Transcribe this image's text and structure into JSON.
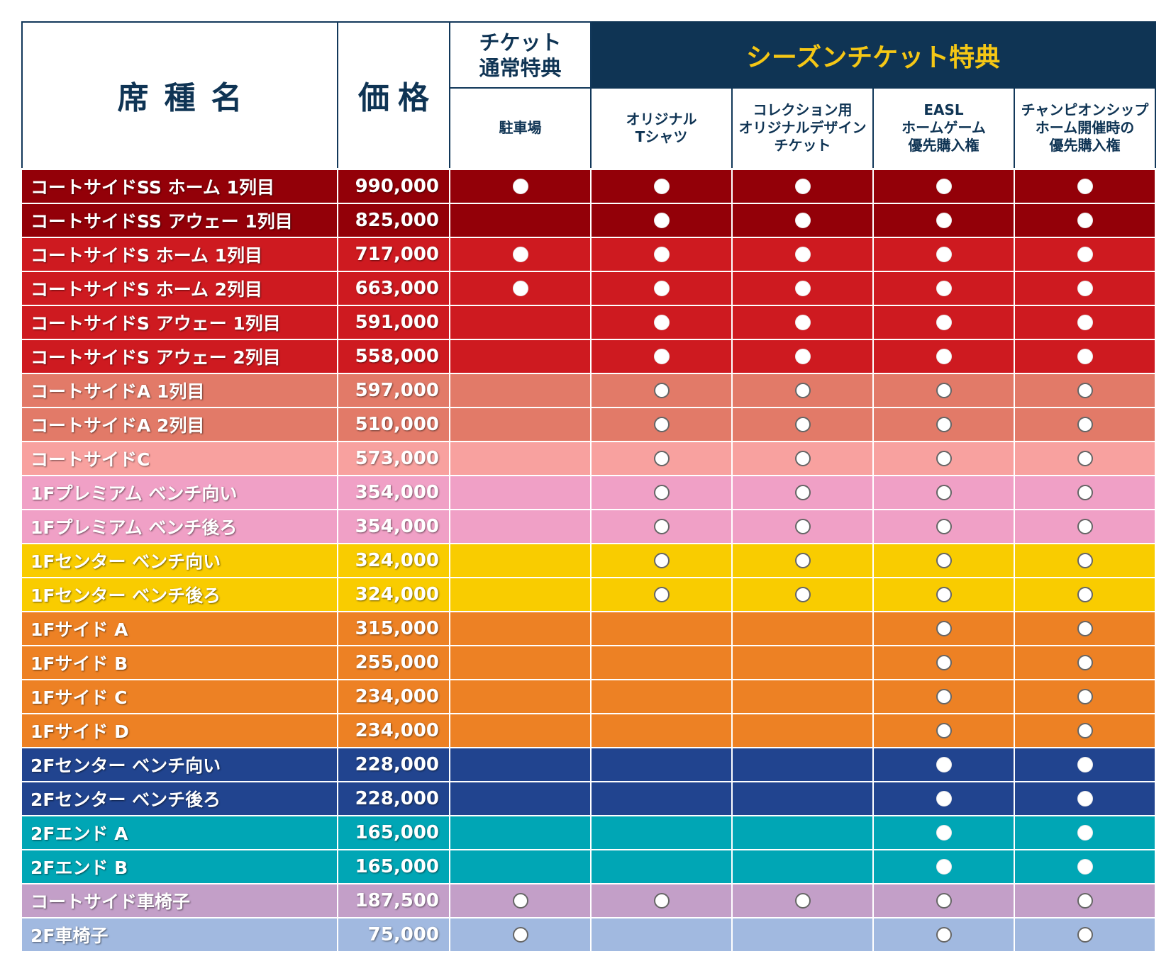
{
  "header": {
    "name": "席種名",
    "price": "価格",
    "normal_benefit": [
      "チケット",
      "通常特典"
    ],
    "season_benefit": "シーズンチケット特典",
    "columns": [
      [
        "駐車場"
      ],
      [
        "オリジナル",
        "Tシャツ"
      ],
      [
        "コレクション用",
        "オリジナルデザイン",
        "チケット"
      ],
      [
        "EASL",
        "ホームゲーム",
        "優先購入権"
      ],
      [
        "チャンピオンシップ",
        "ホーム開催時の",
        "優先購入権"
      ]
    ]
  },
  "colors": {
    "navy": "#0f3454",
    "gold": "#f5c715"
  },
  "rows": [
    {
      "name": "コートサイドSS ホーム 1列目",
      "price": "990,000",
      "bg": "#930008",
      "mark": "filled",
      "marks": [
        1,
        1,
        1,
        1,
        1
      ]
    },
    {
      "name": "コートサイドSS アウェー 1列目",
      "price": "825,000",
      "bg": "#930008",
      "mark": "filled",
      "marks": [
        0,
        1,
        1,
        1,
        1
      ]
    },
    {
      "name": "コートサイドS ホーム 1列目",
      "price": "717,000",
      "bg": "#ce1a20",
      "mark": "filled",
      "marks": [
        1,
        1,
        1,
        1,
        1
      ]
    },
    {
      "name": "コートサイドS ホーム 2列目",
      "price": "663,000",
      "bg": "#ce1a20",
      "mark": "filled",
      "marks": [
        1,
        1,
        1,
        1,
        1
      ]
    },
    {
      "name": "コートサイドS アウェー 1列目",
      "price": "591,000",
      "bg": "#ce1a20",
      "mark": "filled",
      "marks": [
        0,
        1,
        1,
        1,
        1
      ]
    },
    {
      "name": "コートサイドS アウェー 2列目",
      "price": "558,000",
      "bg": "#ce1a20",
      "mark": "filled",
      "marks": [
        0,
        1,
        1,
        1,
        1
      ]
    },
    {
      "name": "コートサイドA 1列目",
      "price": "597,000",
      "bg": "#e27a68",
      "mark": "outline",
      "marks": [
        0,
        1,
        1,
        1,
        1
      ]
    },
    {
      "name": "コートサイドA 2列目",
      "price": "510,000",
      "bg": "#e27a68",
      "mark": "outline",
      "marks": [
        0,
        1,
        1,
        1,
        1
      ]
    },
    {
      "name": "コートサイドC",
      "price": "573,000",
      "bg": "#f8a19f",
      "mark": "outline",
      "marks": [
        0,
        1,
        1,
        1,
        1
      ]
    },
    {
      "name": "1Fプレミアム ベンチ向い",
      "price": "354,000",
      "bg": "#f0a0c6",
      "mark": "outline",
      "marks": [
        0,
        1,
        1,
        1,
        1
      ]
    },
    {
      "name": "1Fプレミアム ベンチ後ろ",
      "price": "354,000",
      "bg": "#f0a0c6",
      "mark": "outline",
      "marks": [
        0,
        1,
        1,
        1,
        1
      ]
    },
    {
      "name": "1Fセンター ベンチ向い",
      "price": "324,000",
      "bg": "#f9cc00",
      "mark": "outline",
      "marks": [
        0,
        1,
        1,
        1,
        1
      ]
    },
    {
      "name": "1Fセンター ベンチ後ろ",
      "price": "324,000",
      "bg": "#f9cc00",
      "mark": "outline",
      "marks": [
        0,
        1,
        1,
        1,
        1
      ]
    },
    {
      "name": "1Fサイド A",
      "price": "315,000",
      "bg": "#ed8124",
      "mark": "outline",
      "marks": [
        0,
        0,
        0,
        1,
        1
      ]
    },
    {
      "name": "1Fサイド B",
      "price": "255,000",
      "bg": "#ed8124",
      "mark": "outline",
      "marks": [
        0,
        0,
        0,
        1,
        1
      ]
    },
    {
      "name": "1Fサイド C",
      "price": "234,000",
      "bg": "#ed8124",
      "mark": "outline",
      "marks": [
        0,
        0,
        0,
        1,
        1
      ]
    },
    {
      "name": "1Fサイド D",
      "price": "234,000",
      "bg": "#ed8124",
      "mark": "outline",
      "marks": [
        0,
        0,
        0,
        1,
        1
      ]
    },
    {
      "name": "2Fセンター ベンチ向い",
      "price": "228,000",
      "bg": "#21448f",
      "mark": "filled",
      "marks": [
        0,
        0,
        0,
        1,
        1
      ]
    },
    {
      "name": "2Fセンター ベンチ後ろ",
      "price": "228,000",
      "bg": "#21448f",
      "mark": "filled",
      "marks": [
        0,
        0,
        0,
        1,
        1
      ]
    },
    {
      "name": "2Fエンド A",
      "price": "165,000",
      "bg": "#00a6b5",
      "mark": "filled",
      "marks": [
        0,
        0,
        0,
        1,
        1
      ]
    },
    {
      "name": "2Fエンド B",
      "price": "165,000",
      "bg": "#00a6b5",
      "mark": "filled",
      "marks": [
        0,
        0,
        0,
        1,
        1
      ]
    },
    {
      "name": "コートサイド車椅子",
      "price": "187,500",
      "bg": "#c39fc8",
      "mark": "outline",
      "marks": [
        1,
        1,
        1,
        1,
        1
      ]
    },
    {
      "name": "2F車椅子",
      "price": "75,000",
      "bg": "#a1b9e0",
      "mark": "outline",
      "marks": [
        1,
        0,
        0,
        1,
        1
      ]
    }
  ]
}
